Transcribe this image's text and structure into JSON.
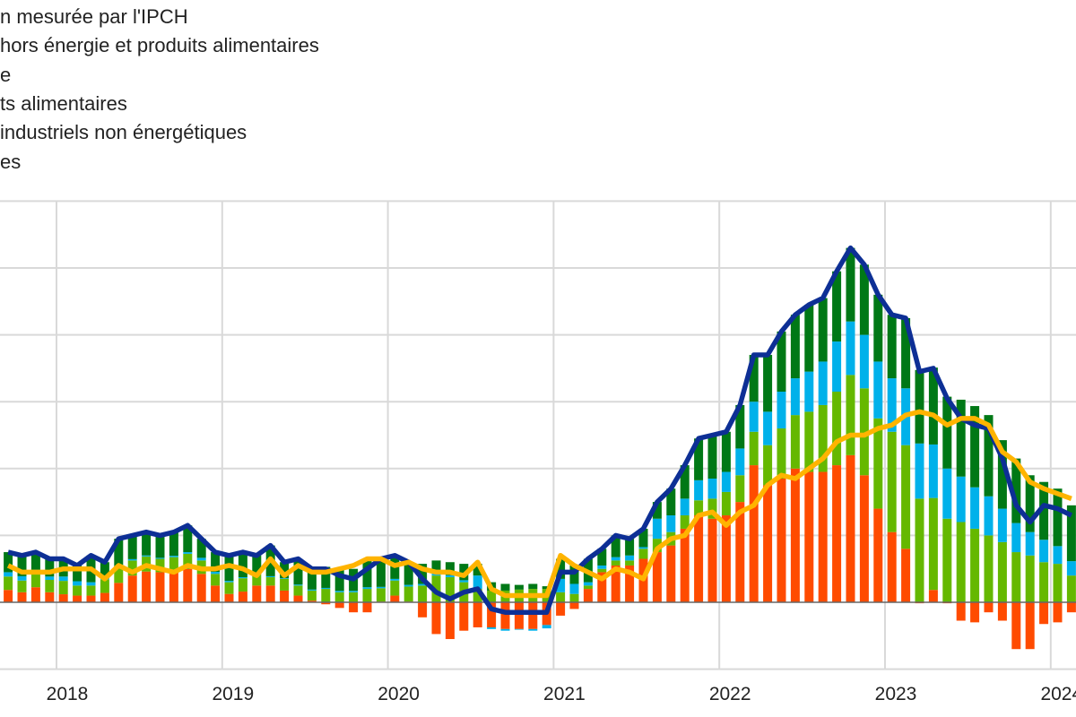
{
  "chart_data": {
    "type": "bar",
    "stacked": true,
    "legend": {
      "placement": "top-left",
      "entries": [
        "n mesurée par l'IPCH",
        "hors énergie et produits alimentaires",
        "e",
        "ts alimentaires",
        "industriels non énergétiques",
        "es"
      ]
    },
    "x_tick_labels": [
      "2018",
      "2019",
      "2020",
      "2021",
      "2022",
      "2023",
      "2024"
    ],
    "ylim": [
      -2,
      12
    ],
    "y_gridlines": [
      -2,
      0,
      2,
      4,
      6,
      8,
      10,
      12
    ],
    "grid": true,
    "months": [
      "2017-09",
      "2017-10",
      "2017-11",
      "2017-12",
      "2018-01",
      "2018-02",
      "2018-03",
      "2018-04",
      "2018-05",
      "2018-06",
      "2018-07",
      "2018-08",
      "2018-09",
      "2018-10",
      "2018-11",
      "2018-12",
      "2019-01",
      "2019-02",
      "2019-03",
      "2019-04",
      "2019-05",
      "2019-06",
      "2019-07",
      "2019-08",
      "2019-09",
      "2019-10",
      "2019-11",
      "2019-12",
      "2020-01",
      "2020-02",
      "2020-03",
      "2020-04",
      "2020-05",
      "2020-06",
      "2020-07",
      "2020-08",
      "2020-09",
      "2020-10",
      "2020-11",
      "2020-12",
      "2021-01",
      "2021-02",
      "2021-03",
      "2021-04",
      "2021-05",
      "2021-06",
      "2021-07",
      "2021-08",
      "2021-09",
      "2021-10",
      "2021-11",
      "2021-12",
      "2022-01",
      "2022-02",
      "2022-03",
      "2022-04",
      "2022-05",
      "2022-06",
      "2022-07",
      "2022-08",
      "2022-09",
      "2022-10",
      "2022-11",
      "2022-12",
      "2023-01",
      "2023-02",
      "2023-03",
      "2023-04",
      "2023-05",
      "2023-06",
      "2023-07",
      "2023-08",
      "2023-09",
      "2023-10",
      "2023-11",
      "2023-12",
      "2024-01",
      "2024-02"
    ],
    "bar_series": [
      {
        "key": "energy",
        "color": "#ff4b00",
        "values": [
          0.37,
          0.3,
          0.45,
          0.3,
          0.24,
          0.2,
          0.2,
          0.28,
          0.58,
          0.8,
          0.92,
          0.9,
          0.9,
          1.0,
          0.85,
          0.5,
          0.25,
          0.32,
          0.5,
          0.5,
          0.35,
          0.2,
          0.05,
          -0.06,
          -0.17,
          -0.3,
          -0.3,
          0.02,
          0.2,
          0.02,
          -0.45,
          -0.95,
          -1.1,
          -0.85,
          -0.75,
          -0.75,
          -0.8,
          -0.8,
          -0.8,
          -0.68,
          -0.4,
          -0.2,
          0.4,
          0.9,
          1.1,
          1.1,
          1.3,
          1.5,
          1.7,
          2.2,
          2.6,
          2.5,
          2.6,
          3.0,
          4.1,
          3.5,
          3.7,
          4.0,
          3.9,
          3.9,
          4.1,
          4.4,
          3.8,
          2.8,
          2.1,
          1.6,
          -0.03,
          0.37,
          -0.03,
          -0.55,
          -0.6,
          -0.3,
          -0.55,
          -1.4,
          -1.4,
          -0.65,
          -0.6,
          -0.3
        ]
      },
      {
        "key": "food",
        "color": "#65b800",
        "values": [
          0.4,
          0.35,
          0.4,
          0.37,
          0.4,
          0.3,
          0.3,
          0.4,
          0.45,
          0.45,
          0.45,
          0.4,
          0.45,
          0.45,
          0.4,
          0.35,
          0.35,
          0.4,
          0.35,
          0.25,
          0.35,
          0.3,
          0.3,
          0.4,
          0.3,
          0.3,
          0.4,
          0.4,
          0.45,
          0.45,
          0.5,
          0.8,
          0.75,
          0.6,
          0.4,
          0.35,
          0.35,
          0.38,
          0.4,
          0.4,
          0.3,
          0.25,
          0.1,
          0.1,
          0.15,
          0.15,
          0.3,
          0.4,
          0.4,
          0.4,
          0.45,
          0.6,
          0.7,
          0.8,
          1.0,
          1.2,
          1.5,
          1.6,
          1.8,
          2.0,
          2.2,
          2.4,
          2.6,
          2.7,
          3.0,
          3.1,
          3.1,
          2.75,
          2.5,
          2.4,
          2.2,
          2.0,
          1.8,
          1.5,
          1.4,
          1.2,
          1.15,
          0.8
        ]
      },
      {
        "key": "neig",
        "color": "#00b1ea",
        "values": [
          0.13,
          0.13,
          0.12,
          0.1,
          0.13,
          0.13,
          0.1,
          0.05,
          0.05,
          0.04,
          0.03,
          0.03,
          0.04,
          0.05,
          0.08,
          0.06,
          0.04,
          0.03,
          0.02,
          0.03,
          0.02,
          0.03,
          0.03,
          0.03,
          0.04,
          0.04,
          0.05,
          0.04,
          0.05,
          0.05,
          0.05,
          0.07,
          0.06,
          0.06,
          0.4,
          -0.05,
          -0.05,
          -0.02,
          -0.05,
          -0.1,
          0.4,
          0.3,
          0.1,
          0.1,
          0.1,
          0.15,
          0.05,
          0.6,
          0.5,
          0.5,
          0.6,
          0.6,
          0.6,
          0.8,
          0.9,
          1.0,
          1.1,
          1.1,
          1.2,
          1.3,
          1.5,
          1.6,
          1.6,
          1.7,
          1.6,
          1.7,
          1.65,
          1.6,
          1.5,
          1.36,
          1.24,
          1.17,
          1.0,
          0.87,
          0.7,
          0.67,
          0.53,
          0.43
        ]
      },
      {
        "key": "services",
        "color": "#007816",
        "values": [
          0.6,
          0.62,
          0.53,
          0.53,
          0.53,
          0.47,
          0.8,
          0.47,
          0.82,
          0.71,
          0.7,
          0.67,
          0.71,
          0.8,
          0.57,
          0.59,
          0.76,
          0.75,
          0.53,
          0.92,
          0.48,
          0.77,
          0.62,
          0.63,
          0.63,
          0.66,
          0.85,
          0.84,
          0.7,
          0.68,
          0.6,
          0.38,
          0.39,
          0.49,
          0.35,
          0.25,
          0.2,
          0.14,
          0.15,
          0.08,
          0.6,
          0.55,
          0.7,
          0.5,
          0.65,
          0.5,
          0.55,
          0.5,
          0.8,
          1.0,
          1.25,
          1.3,
          1.2,
          1.3,
          1.4,
          1.7,
          1.8,
          1.9,
          2.0,
          1.9,
          2.1,
          2.2,
          2.1,
          2.0,
          1.9,
          2.1,
          2.2,
          2.3,
          2.15,
          2.3,
          2.43,
          2.43,
          2.05,
          1.93,
          1.7,
          1.73,
          1.72,
          1.67
        ]
      }
    ],
    "line_series": [
      {
        "key": "headline",
        "color": "#0d2f95",
        "values": [
          1.5,
          1.4,
          1.5,
          1.3,
          1.3,
          1.1,
          1.4,
          1.2,
          1.9,
          2.0,
          2.1,
          2.0,
          2.1,
          2.3,
          1.9,
          1.5,
          1.4,
          1.5,
          1.4,
          1.7,
          1.2,
          1.3,
          1.0,
          1.0,
          0.8,
          0.7,
          1.0,
          1.3,
          1.4,
          1.2,
          0.7,
          0.3,
          0.1,
          0.3,
          0.4,
          -0.2,
          -0.3,
          -0.3,
          -0.3,
          -0.3,
          0.9,
          0.9,
          1.3,
          1.6,
          2.0,
          1.9,
          2.2,
          3.0,
          3.4,
          4.1,
          4.9,
          5.0,
          5.1,
          5.9,
          7.4,
          7.4,
          8.1,
          8.6,
          8.9,
          9.1,
          9.9,
          10.6,
          10.1,
          9.2,
          8.6,
          8.5,
          6.9,
          7.0,
          6.1,
          5.5,
          5.3,
          5.2,
          4.3,
          2.9,
          2.4,
          2.9,
          2.8,
          2.6
        ]
      },
      {
        "key": "core",
        "color": "#ffb400",
        "values": [
          1.1,
          0.9,
          0.9,
          0.9,
          1.0,
          1.0,
          1.0,
          0.7,
          1.1,
          0.9,
          1.1,
          1.0,
          0.9,
          1.1,
          1.0,
          1.0,
          1.1,
          1.0,
          0.8,
          1.3,
          0.8,
          1.1,
          0.9,
          0.9,
          1.0,
          1.1,
          1.3,
          1.3,
          1.1,
          1.2,
          1.0,
          0.9,
          0.9,
          0.8,
          1.2,
          0.4,
          0.2,
          0.2,
          0.2,
          0.2,
          1.4,
          1.1,
          0.9,
          0.7,
          1.0,
          0.9,
          0.7,
          1.6,
          1.9,
          2.0,
          2.6,
          2.7,
          2.3,
          2.7,
          2.9,
          3.5,
          3.8,
          3.7,
          4.0,
          4.3,
          4.8,
          5.0,
          5.0,
          5.2,
          5.3,
          5.6,
          5.7,
          5.6,
          5.3,
          5.5,
          5.5,
          5.3,
          4.5,
          4.2,
          3.6,
          3.4,
          3.25,
          3.1
        ]
      }
    ]
  }
}
